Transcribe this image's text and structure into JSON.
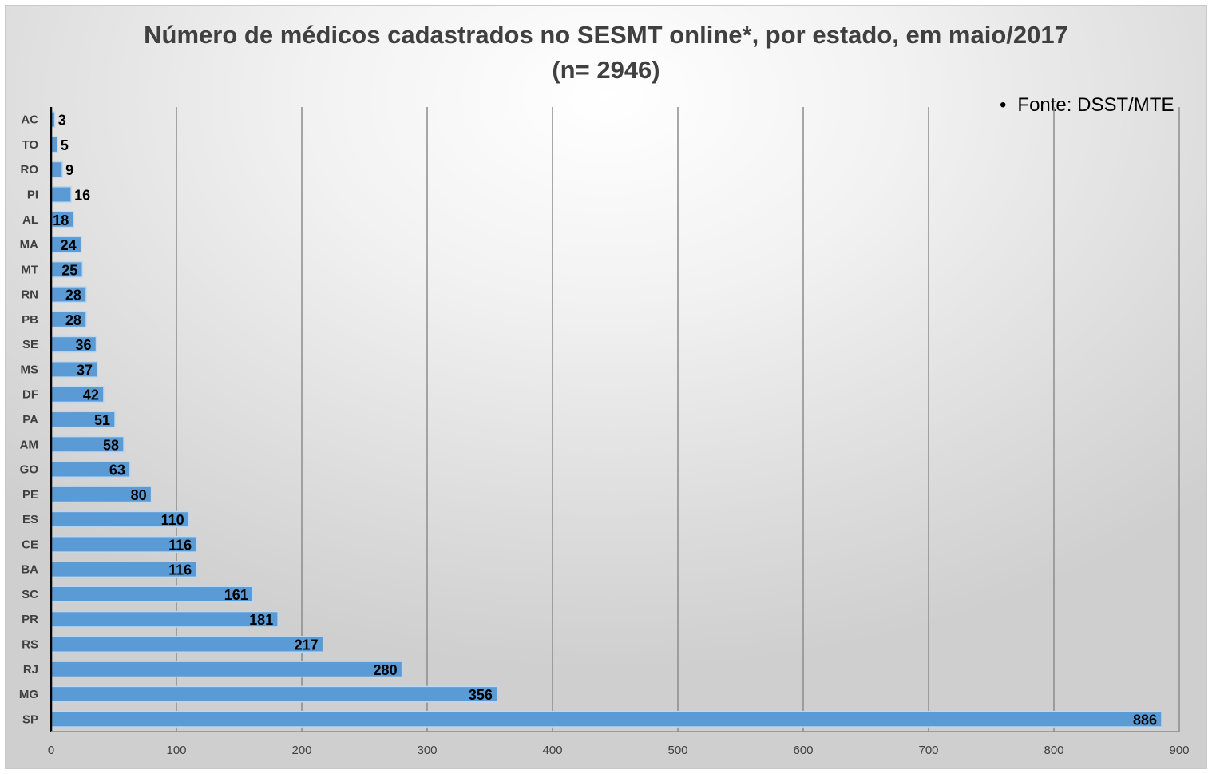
{
  "chart_data": {
    "type": "bar",
    "orientation": "horizontal",
    "title": "Número de médicos cadastrados no SESMT online*, por estado, em maio/2017",
    "subtitle": "(n= 2946)",
    "annotation": "Fonte: DSST/MTE",
    "xlim": [
      0,
      900
    ],
    "x_ticks": [
      0,
      100,
      200,
      300,
      400,
      500,
      600,
      700,
      800,
      900
    ],
    "grid": "vertical",
    "legend": "none",
    "bar_color": "#5b9bd5",
    "categories": [
      "AC",
      "TO",
      "RO",
      "PI",
      "AL",
      "MA",
      "MT",
      "RN",
      "PB",
      "SE",
      "MS",
      "DF",
      "PA",
      "AM",
      "GO",
      "PE",
      "ES",
      "CE",
      "BA",
      "SC",
      "PR",
      "RS",
      "RJ",
      "MG",
      "SP"
    ],
    "values": [
      3,
      5,
      9,
      16,
      18,
      24,
      25,
      28,
      28,
      36,
      37,
      42,
      51,
      58,
      63,
      80,
      110,
      116,
      116,
      161,
      181,
      217,
      280,
      356,
      886
    ]
  }
}
